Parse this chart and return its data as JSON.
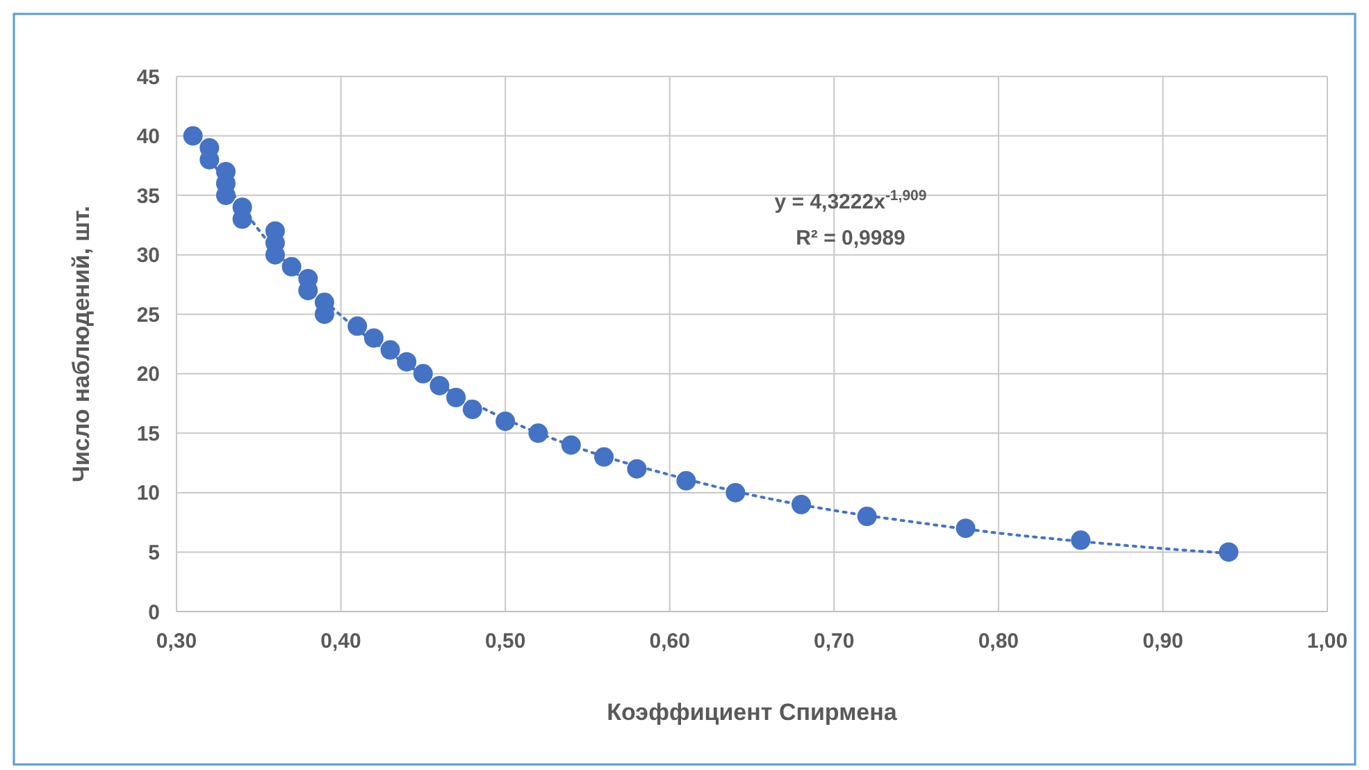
{
  "chart_data": {
    "type": "scatter",
    "xlabel": "Коэффициент Спирмена",
    "ylabel": "Число наблюдений, шт.",
    "annotations": [
      "y = 4,3222x$^{-1,909}$",
      "R² = 0,9989"
    ],
    "xlim": [
      0.3,
      1.0
    ],
    "xticks": [
      {
        "value": 0.3,
        "label": "0,30"
      },
      {
        "value": 0.4,
        "label": "0,40"
      },
      {
        "value": 0.5,
        "label": "0,50"
      },
      {
        "value": 0.6,
        "label": "0,60"
      },
      {
        "value": 0.7,
        "label": "0,70"
      },
      {
        "value": 0.8,
        "label": "0,80"
      },
      {
        "value": 0.9,
        "label": "0,90"
      },
      {
        "value": 1.0,
        "label": "1,00"
      }
    ],
    "ylim": [
      0,
      45
    ],
    "yticks": [
      0,
      5,
      10,
      15,
      20,
      25,
      30,
      35,
      40,
      45
    ],
    "grid": true,
    "series": [
      {
        "color": "#4472c4",
        "marker": "circle",
        "x": [
          0.31,
          0.32,
          0.32,
          0.33,
          0.33,
          0.33,
          0.34,
          0.34,
          0.36,
          0.36,
          0.36,
          0.37,
          0.38,
          0.38,
          0.39,
          0.39,
          0.41,
          0.42,
          0.43,
          0.44,
          0.45,
          0.46,
          0.47,
          0.48,
          0.5,
          0.52,
          0.54,
          0.56,
          0.58,
          0.61,
          0.64,
          0.68,
          0.72,
          0.78,
          0.85,
          0.94
        ],
        "values": [
          40,
          39,
          38,
          37,
          36,
          35,
          34,
          33,
          32,
          31,
          30,
          29,
          28,
          27,
          26,
          25,
          24,
          23,
          22,
          21,
          20,
          19,
          18,
          17,
          16,
          15,
          14,
          13,
          12,
          11,
          10,
          9,
          8,
          7,
          6,
          5
        ]
      },
      {
        "type": "line",
        "color": "#4472c4",
        "line_style": "dotted",
        "marker": "none",
        "x": [
          0.31,
          0.35,
          0.4,
          0.45,
          0.5,
          0.55,
          0.6,
          0.65,
          0.7,
          0.75,
          0.8,
          0.85,
          0.9,
          0.94
        ],
        "values": [
          40.4,
          32.1,
          24.9,
          19.9,
          16.2,
          13.5,
          11.5,
          9.8,
          8.5,
          7.5,
          6.6,
          5.9,
          5.3,
          4.9
        ]
      }
    ]
  }
}
